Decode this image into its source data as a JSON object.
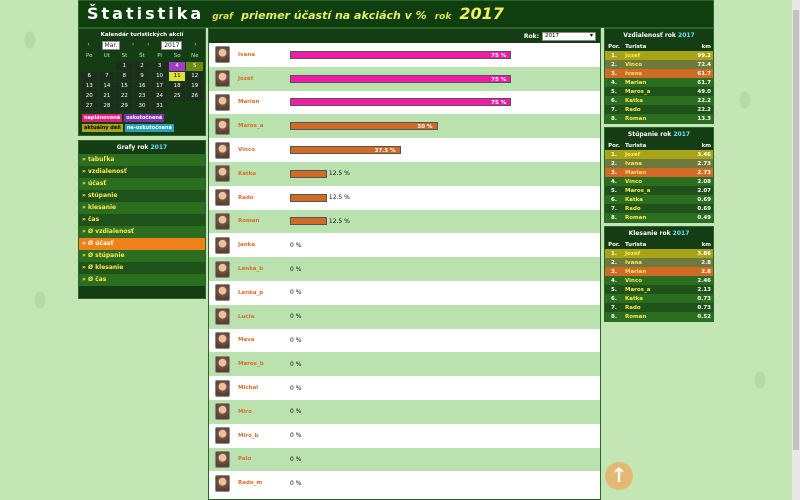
{
  "header": {
    "title": "Štatistika",
    "graf": "graf",
    "subtitle": "priemer účastí na akciách v %",
    "rok": "rok",
    "year": "2017"
  },
  "calendar": {
    "title": "Kalendár turistických akcií",
    "month": "Mar.",
    "year": "2017",
    "prev_icon": "chevron-left",
    "next_icon": "chevron-right",
    "day_names": [
      "Po",
      "Ut",
      "St",
      "Št",
      "Pi",
      "So",
      "Ne"
    ],
    "days": [
      "",
      "",
      "1",
      "2",
      "3",
      "4",
      "5",
      "6",
      "7",
      "8",
      "9",
      "10",
      "11",
      "12",
      "13",
      "14",
      "15",
      "16",
      "17",
      "18",
      "19",
      "20",
      "21",
      "22",
      "23",
      "24",
      "25",
      "26",
      "27",
      "28",
      "29",
      "30",
      "31",
      "",
      ""
    ],
    "legend": [
      "naplánovaná",
      "uskutočnená",
      "aktuálny deň",
      "ne-uskutočnená"
    ]
  },
  "menu": {
    "title": "Grafy rok",
    "year": "2017",
    "items": [
      "» tabuľka",
      "» vzdialenosť",
      "» účasť",
      "» stúpanie",
      "» klesanie",
      "» čas",
      "» Ø vzdialenosť",
      "» Ø účasť",
      "» Ø stúpanie",
      "» Ø klesanie",
      "» Ø čas"
    ],
    "active_index": 7
  },
  "center": {
    "rok_label": "Rok:",
    "rok_value": "2017"
  },
  "chart_data": {
    "type": "bar",
    "categories": [
      "Ivana",
      "Jozef",
      "Marian",
      "Maros_a",
      "Vinco",
      "Katka",
      "Rado",
      "Roman",
      "Janka",
      "Lenka_b",
      "Lenka_p",
      "Lucia",
      "Mava",
      "Maros_b",
      "Michal",
      "Miro",
      "Miro_b",
      "Palo",
      "Rado_m"
    ],
    "values": [
      75,
      75,
      75,
      50,
      37.5,
      12.5,
      12.5,
      12.5,
      0,
      0,
      0,
      0,
      0,
      0,
      0,
      0,
      0,
      0,
      0
    ],
    "labels": [
      "75 %",
      "75 %",
      "75 %",
      "50 %",
      "37.5 %",
      "12.5 %",
      "12.5 %",
      "12.5 %",
      "0 %",
      "0 %",
      "0 %",
      "0 %",
      "0 %",
      "0 %",
      "0 %",
      "0 %",
      "0 %",
      "0 %",
      "0 %"
    ],
    "max": 100,
    "colors": {
      "pink": "#f01ca8",
      "brown": "#d06a24"
    }
  },
  "right": {
    "distance": {
      "title": "Vzdialenosť rok",
      "year": "2017",
      "cols": [
        "Por.",
        "Turista",
        "km"
      ],
      "rows": [
        {
          "por": "1.",
          "name": "Jozef",
          "val": "99.2"
        },
        {
          "por": "2.",
          "name": "Vinco",
          "val": "72.4"
        },
        {
          "por": "3.",
          "name": "Ivana",
          "val": "61.7"
        },
        {
          "por": "4.",
          "name": "Marian",
          "val": "61.7"
        },
        {
          "por": "5.",
          "name": "Maros_a",
          "val": "49.0"
        },
        {
          "por": "6.",
          "name": "Katka",
          "val": "22.2"
        },
        {
          "por": "7.",
          "name": "Rado",
          "val": "22.2"
        },
        {
          "por": "8.",
          "name": "Roman",
          "val": "13.3"
        }
      ]
    },
    "ascent": {
      "title": "Stúpanie rok",
      "year": "2017",
      "cols": [
        "Por.",
        "Turista",
        "km"
      ],
      "rows": [
        {
          "por": "1.",
          "name": "Jozef",
          "val": "3.46"
        },
        {
          "por": "2.",
          "name": "Ivana",
          "val": "2.73"
        },
        {
          "por": "3.",
          "name": "Marian",
          "val": "2.73"
        },
        {
          "por": "4.",
          "name": "Vinco",
          "val": "2.08"
        },
        {
          "por": "5.",
          "name": "Maros_a",
          "val": "2.07"
        },
        {
          "por": "6.",
          "name": "Katka",
          "val": "0.69"
        },
        {
          "por": "7.",
          "name": "Rado",
          "val": "0.69"
        },
        {
          "por": "8.",
          "name": "Roman",
          "val": "0.49"
        }
      ]
    },
    "descent": {
      "title": "Klesanie rok",
      "year": "2017",
      "cols": [
        "Por.",
        "Turista",
        "km"
      ],
      "rows": [
        {
          "por": "1.",
          "name": "Jozef",
          "val": "3.86"
        },
        {
          "por": "2.",
          "name": "Ivana",
          "val": "2.8"
        },
        {
          "por": "3.",
          "name": "Marian",
          "val": "2.8"
        },
        {
          "por": "4.",
          "name": "Vinco",
          "val": "2.46"
        },
        {
          "por": "5.",
          "name": "Maros_a",
          "val": "2.13"
        },
        {
          "por": "6.",
          "name": "Katka",
          "val": "0.73"
        },
        {
          "por": "7.",
          "name": "Rado",
          "val": "0.73"
        },
        {
          "por": "8.",
          "name": "Roman",
          "val": "0.52"
        }
      ]
    }
  },
  "scroll_top": {
    "icon": "arrow-up-icon",
    "glyph": "↑"
  }
}
